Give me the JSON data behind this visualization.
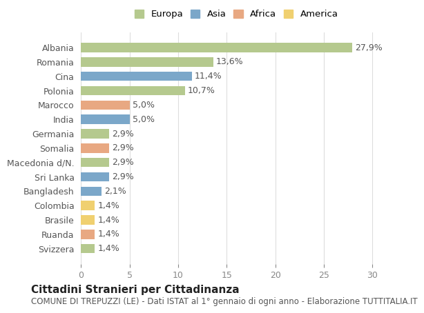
{
  "countries": [
    "Albania",
    "Romania",
    "Cina",
    "Polonia",
    "Marocco",
    "India",
    "Germania",
    "Somalia",
    "Macedonia d/N.",
    "Sri Lanka",
    "Bangladesh",
    "Colombia",
    "Brasile",
    "Ruanda",
    "Svizzera"
  ],
  "values": [
    27.9,
    13.6,
    11.4,
    10.7,
    5.0,
    5.0,
    2.9,
    2.9,
    2.9,
    2.9,
    2.1,
    1.4,
    1.4,
    1.4,
    1.4
  ],
  "labels": [
    "27,9%",
    "13,6%",
    "11,4%",
    "10,7%",
    "5,0%",
    "5,0%",
    "2,9%",
    "2,9%",
    "2,9%",
    "2,9%",
    "2,1%",
    "1,4%",
    "1,4%",
    "1,4%",
    "1,4%"
  ],
  "continents": [
    "Europa",
    "Europa",
    "Asia",
    "Europa",
    "Africa",
    "Asia",
    "Europa",
    "Africa",
    "Europa",
    "Asia",
    "Asia",
    "America",
    "America",
    "Africa",
    "Europa"
  ],
  "continent_colors": {
    "Europa": "#b5c98e",
    "Asia": "#7ba7c9",
    "Africa": "#e8a882",
    "America": "#f0d070"
  },
  "legend_order": [
    "Europa",
    "Asia",
    "Africa",
    "America"
  ],
  "title": "Cittadini Stranieri per Cittadinanza",
  "subtitle": "COMUNE DI TREPUZZI (LE) - Dati ISTAT al 1° gennaio di ogni anno - Elaborazione TUTTITALIA.IT",
  "xlim": [
    0,
    32
  ],
  "xticks": [
    0,
    5,
    10,
    15,
    20,
    25,
    30
  ],
  "bg_color": "#ffffff",
  "bar_height": 0.65,
  "grid_color": "#dddddd",
  "label_fontsize": 9,
  "title_fontsize": 11,
  "subtitle_fontsize": 8.5,
  "tick_fontsize": 9
}
